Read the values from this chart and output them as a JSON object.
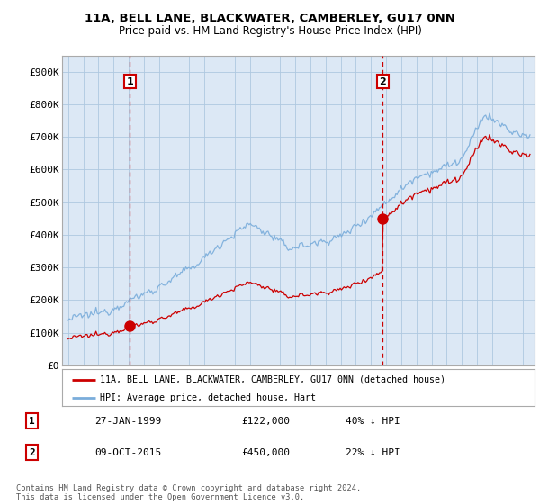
{
  "title_line1": "11A, BELL LANE, BLACKWATER, CAMBERLEY, GU17 0NN",
  "title_line2": "Price paid vs. HM Land Registry's House Price Index (HPI)",
  "ylim": [
    0,
    950000
  ],
  "yticks": [
    0,
    100000,
    200000,
    300000,
    400000,
    500000,
    600000,
    700000,
    800000,
    900000
  ],
  "ytick_labels": [
    "£0",
    "£100K",
    "£200K",
    "£300K",
    "£400K",
    "£500K",
    "£600K",
    "£700K",
    "£800K",
    "£900K"
  ],
  "sale1": {
    "date_num": 1999.07,
    "price": 122000,
    "label": "1"
  },
  "sale2": {
    "date_num": 2015.77,
    "price": 450000,
    "label": "2"
  },
  "legend_property": "11A, BELL LANE, BLACKWATER, CAMBERLEY, GU17 0NN (detached house)",
  "legend_hpi": "HPI: Average price, detached house, Hart",
  "table_rows": [
    {
      "num": "1",
      "date": "27-JAN-1999",
      "price": "£122,000",
      "hpi": "40% ↓ HPI"
    },
    {
      "num": "2",
      "date": "09-OCT-2015",
      "price": "£450,000",
      "hpi": "22% ↓ HPI"
    }
  ],
  "footnote": "Contains HM Land Registry data © Crown copyright and database right 2024.\nThis data is licensed under the Open Government Licence v3.0.",
  "property_color": "#cc0000",
  "hpi_color": "#7aaddb",
  "vline_color": "#cc0000",
  "plot_bg_color": "#dce8f5",
  "background_color": "#ffffff",
  "grid_color": "#aec8e0",
  "label_box_color": "#cc0000",
  "xlim_left": 1994.6,
  "xlim_right": 2025.8
}
